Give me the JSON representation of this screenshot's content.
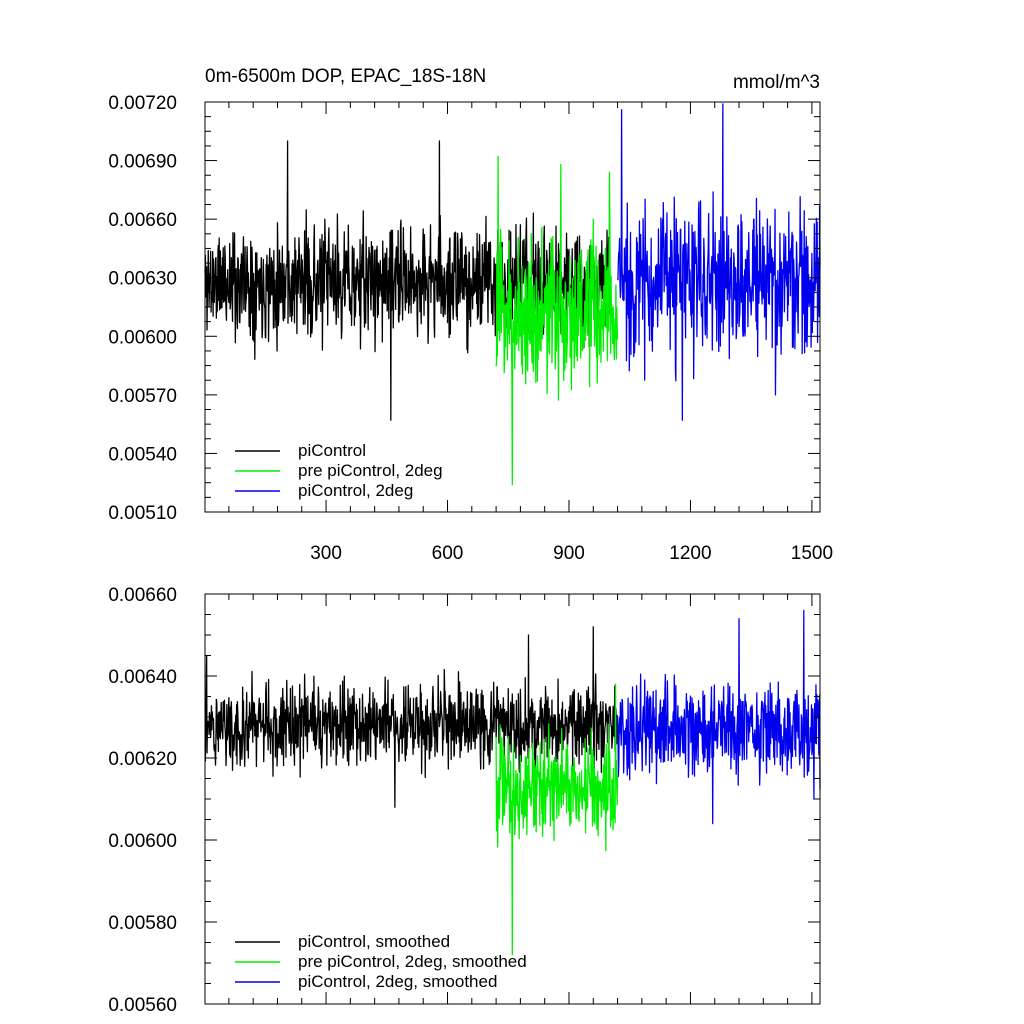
{
  "chart_data": [
    {
      "type": "line",
      "title": "0m-6500m DOP, EPAC_18S-18N",
      "units": "mmol/m^3",
      "xlim": [
        1,
        1520
      ],
      "ylim": [
        0.0051,
        0.0072
      ],
      "x_ticks": [
        300,
        600,
        900,
        1200,
        1500
      ],
      "x_tick_labels": [
        "300",
        "600",
        "900",
        "1200",
        "1500"
      ],
      "y_ticks": [
        0.0051,
        0.0054,
        0.0057,
        0.006,
        0.0063,
        0.0066,
        0.0069,
        0.0072
      ],
      "y_tick_labels": [
        "0.00510",
        "0.00540",
        "0.00570",
        "0.00600",
        "0.00630",
        "0.00660",
        "0.00690",
        "0.00720"
      ],
      "grid": false,
      "legend_position": "bottom-left",
      "series": [
        {
          "name": "piControl",
          "color": "#000000",
          "x_range": [
            1,
            1000
          ],
          "noise": {
            "mean": 0.00628,
            "amp": 0.00042,
            "seed": 11
          },
          "anchors": [
            [
              205,
              0.007
            ],
            [
              460,
              0.00557
            ],
            [
              580,
              0.007
            ],
            [
              1000,
              0.00655
            ]
          ]
        },
        {
          "name": "pre piControl, 2deg",
          "color": "#00ee00",
          "x_range": [
            720,
            1020
          ],
          "noise": {
            "mean": 0.00612,
            "amp": 0.00058,
            "seed": 23
          },
          "anchors": [
            [
              725,
              0.00692
            ],
            [
              760,
              0.00524
            ],
            [
              880,
              0.00688
            ],
            [
              1000,
              0.00684
            ]
          ]
        },
        {
          "name": "piControl, 2deg",
          "color": "#0000ee",
          "x_range": [
            1020,
            1520
          ],
          "noise": {
            "mean": 0.00628,
            "amp": 0.00058,
            "seed": 37
          },
          "anchors": [
            [
              1030,
              0.00716
            ],
            [
              1180,
              0.00557
            ],
            [
              1280,
              0.00719
            ],
            [
              1410,
              0.0057
            ]
          ]
        }
      ]
    },
    {
      "type": "line",
      "title": "",
      "xlim": [
        1,
        1520
      ],
      "ylim": [
        0.0056,
        0.0066
      ],
      "x_ticks": [
        300,
        600,
        900,
        1200,
        1500
      ],
      "x_tick_labels": [],
      "y_ticks": [
        0.0056,
        0.0058,
        0.006,
        0.0062,
        0.0064,
        0.0066
      ],
      "y_tick_labels": [
        "0.00560",
        "0.00580",
        "0.00600",
        "0.00620",
        "0.00640",
        "0.00660"
      ],
      "grid": false,
      "legend_position": "bottom-left",
      "series": [
        {
          "name": "piControl, smoothed",
          "color": "#000000",
          "x_range": [
            1,
            1020
          ],
          "noise": {
            "mean": 0.00628,
            "amp": 0.00015,
            "seed": 51
          },
          "anchors": [
            [
              5,
              0.00645
            ],
            [
              800,
              0.0065
            ],
            [
              960,
              0.00652
            ],
            [
              470,
              0.00608
            ]
          ]
        },
        {
          "name": "pre piControl, 2deg, smoothed",
          "color": "#00ee00",
          "x_range": [
            720,
            1020
          ],
          "noise": {
            "mean": 0.00613,
            "amp": 0.00018,
            "seed": 63
          },
          "anchors": [
            [
              760,
              0.00572
            ],
            [
              720,
              0.00625
            ],
            [
              1015,
              0.00638
            ]
          ]
        },
        {
          "name": "piControl, 2deg, smoothed",
          "color": "#0000ee",
          "x_range": [
            1020,
            1520
          ],
          "noise": {
            "mean": 0.00627,
            "amp": 0.00017,
            "seed": 79
          },
          "anchors": [
            [
              1480,
              0.00656
            ],
            [
              1255,
              0.00604
            ],
            [
              1320,
              0.00654
            ],
            [
              1505,
              0.0061
            ]
          ]
        }
      ]
    }
  ]
}
